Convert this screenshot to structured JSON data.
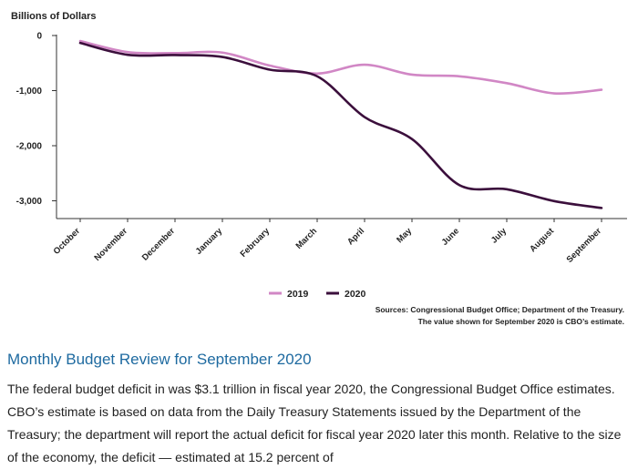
{
  "chart_data": {
    "type": "line",
    "ylabel": "Billions of Dollars",
    "ylim": [
      -3200,
      0
    ],
    "yticks": [
      0,
      -1000,
      -2000,
      -3000
    ],
    "ytick_labels": [
      "0",
      "-1,000",
      "-2,000",
      "-3,000"
    ],
    "categories": [
      "October",
      "November",
      "December",
      "January",
      "February",
      "March",
      "April",
      "May",
      "June",
      "July",
      "August",
      "September"
    ],
    "series": [
      {
        "name": "2019",
        "color": "#d187c5",
        "values": [
          -100,
          -300,
          -320,
          -310,
          -545,
          -690,
          -530,
          -710,
          -740,
          -865,
          -1050,
          -985
        ]
      },
      {
        "name": "2020",
        "color": "#3b0f3c",
        "values": [
          -135,
          -350,
          -355,
          -390,
          -620,
          -740,
          -1480,
          -1880,
          -2715,
          -2790,
          -3005,
          -3130
        ]
      }
    ],
    "source_lines": [
      "Sources: Congressional Budget Office; Department of the Treasury.",
      "The value shown for September 2020 is CBO’s estimate."
    ]
  },
  "article": {
    "title": "Monthly Budget Review for September 2020",
    "body": "The federal budget deficit in was $3.1 trillion in fiscal year 2020, the Congressional Budget Office estimates. CBO’s estimate is based on data from the Daily Treasury Statements issued by the Department of the Treasury; the department will report the actual deficit for fiscal year 2020 later this month. Relative to the size of the economy, the deficit — estimated at 15.2 percent of"
  }
}
